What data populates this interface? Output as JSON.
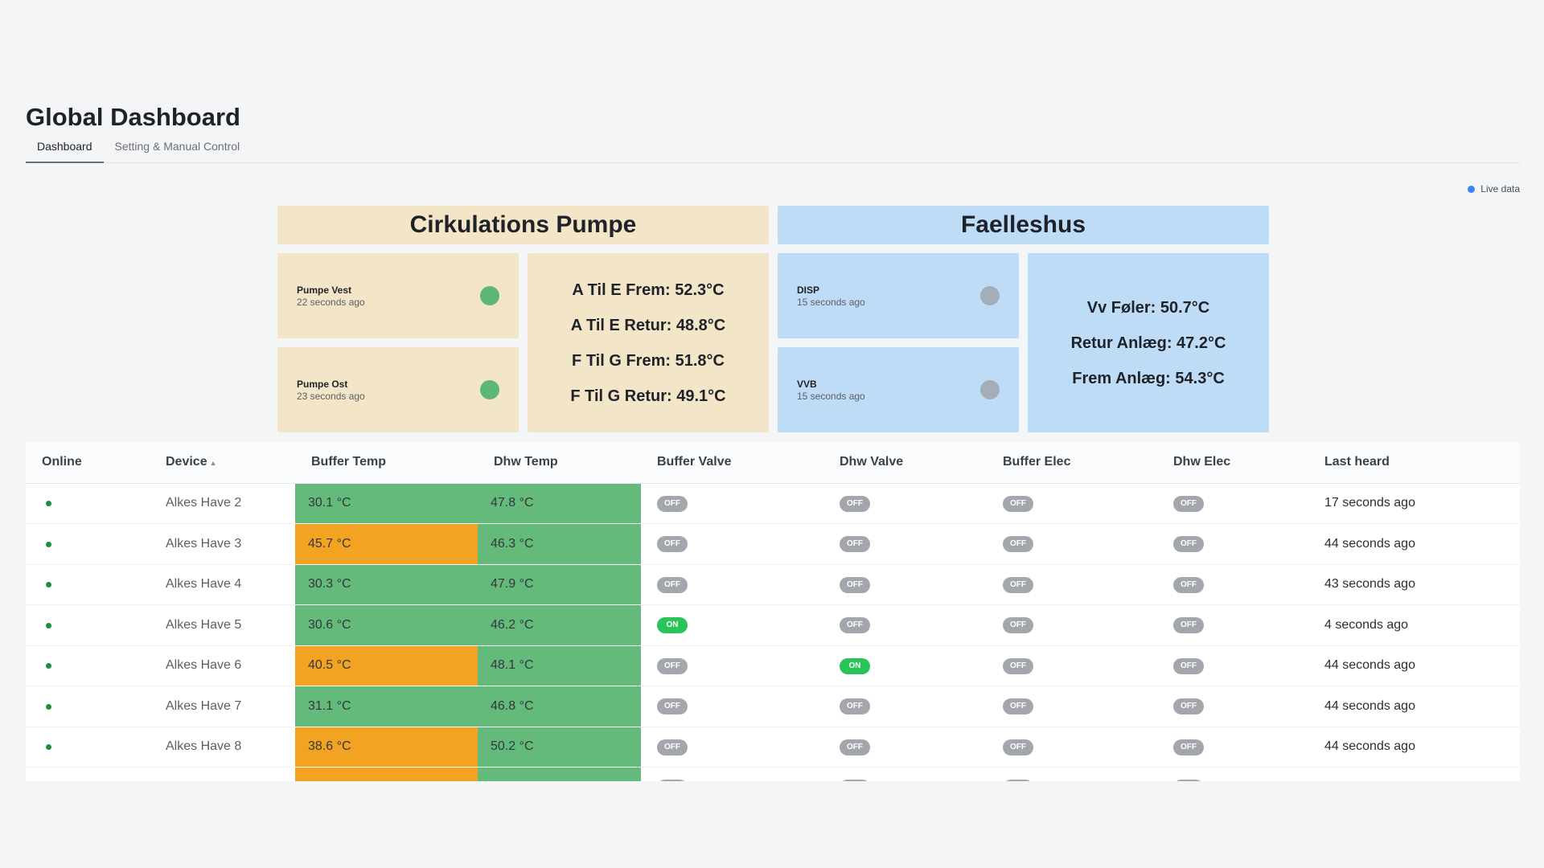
{
  "page": {
    "title": "Global Dashboard",
    "live_label": "Live data"
  },
  "tabs": [
    {
      "label": "Dashboard",
      "active": true
    },
    {
      "label": "Setting & Manual Control",
      "active": false
    }
  ],
  "cirkulation": {
    "title": "Cirkulations Pumpe",
    "devices": [
      {
        "name": "Pumpe Vest",
        "seen": "22 seconds ago",
        "status": "on"
      },
      {
        "name": "Pumpe Ost",
        "seen": "23 seconds ago",
        "status": "on"
      }
    ],
    "readings": [
      "A Til E Frem: 52.3°C",
      "A Til E Retur: 48.8°C",
      "F Til G Frem: 51.8°C",
      "F Til G Retur: 49.1°C"
    ]
  },
  "faelleshus": {
    "title": "Faelleshus",
    "devices": [
      {
        "name": "DISP",
        "seen": "15 seconds ago",
        "status": "off"
      },
      {
        "name": "VVB",
        "seen": "15 seconds ago",
        "status": "off"
      }
    ],
    "readings": [
      "Vv Føler: 50.7°C",
      "Retur Anlæg: 47.2°C",
      "Frem Anlæg: 54.3°C"
    ]
  },
  "colors": {
    "green": "#63ba7a",
    "orange": "#f2a321",
    "on": "#2ac35a",
    "off": "#a3a7ad"
  },
  "table": {
    "headers": [
      "Online",
      "Device",
      "Buffer Temp",
      "Dhw Temp",
      "Buffer Valve",
      "Dhw Valve",
      "Buffer Elec",
      "Dhw Elec",
      "Last heard"
    ],
    "sort_icon": "caret-up-icon",
    "rows": [
      {
        "device": "Alkes Have 2",
        "buffer_temp": "30.1 °C",
        "buffer_color": "green",
        "dhw_temp": "47.8 °C",
        "dhw_color": "green",
        "buffer_valve": "OFF",
        "dhw_valve": "OFF",
        "buffer_elec": "OFF",
        "dhw_elec": "OFF",
        "last_heard": "17 seconds ago"
      },
      {
        "device": "Alkes Have 3",
        "buffer_temp": "45.7 °C",
        "buffer_color": "orange",
        "dhw_temp": "46.3 °C",
        "dhw_color": "green",
        "buffer_valve": "OFF",
        "dhw_valve": "OFF",
        "buffer_elec": "OFF",
        "dhw_elec": "OFF",
        "last_heard": "44 seconds ago"
      },
      {
        "device": "Alkes Have 4",
        "buffer_temp": "30.3 °C",
        "buffer_color": "green",
        "dhw_temp": "47.9 °C",
        "dhw_color": "green",
        "buffer_valve": "OFF",
        "dhw_valve": "OFF",
        "buffer_elec": "OFF",
        "dhw_elec": "OFF",
        "last_heard": "43 seconds ago"
      },
      {
        "device": "Alkes Have 5",
        "buffer_temp": "30.6 °C",
        "buffer_color": "green",
        "dhw_temp": "46.2 °C",
        "dhw_color": "green",
        "buffer_valve": "ON",
        "dhw_valve": "OFF",
        "buffer_elec": "OFF",
        "dhw_elec": "OFF",
        "last_heard": "4 seconds ago"
      },
      {
        "device": "Alkes Have 6",
        "buffer_temp": "40.5 °C",
        "buffer_color": "orange",
        "dhw_temp": "48.1 °C",
        "dhw_color": "green",
        "buffer_valve": "OFF",
        "dhw_valve": "ON",
        "buffer_elec": "OFF",
        "dhw_elec": "OFF",
        "last_heard": "44 seconds ago"
      },
      {
        "device": "Alkes Have 7",
        "buffer_temp": "31.1 °C",
        "buffer_color": "green",
        "dhw_temp": "46.8 °C",
        "dhw_color": "green",
        "buffer_valve": "OFF",
        "dhw_valve": "OFF",
        "buffer_elec": "OFF",
        "dhw_elec": "OFF",
        "last_heard": "44 seconds ago"
      },
      {
        "device": "Alkes Have 8",
        "buffer_temp": "38.6 °C",
        "buffer_color": "orange",
        "dhw_temp": "50.2 °C",
        "dhw_color": "green",
        "buffer_valve": "OFF",
        "dhw_valve": "OFF",
        "buffer_elec": "OFF",
        "dhw_elec": "OFF",
        "last_heard": "44 seconds ago"
      },
      {
        "device": "",
        "buffer_temp": "",
        "buffer_color": "orange",
        "dhw_temp": "",
        "dhw_color": "green",
        "buffer_valve": "OFF",
        "dhw_valve": "OFF",
        "buffer_elec": "OFF",
        "dhw_elec": "OFF",
        "last_heard": ""
      }
    ]
  }
}
